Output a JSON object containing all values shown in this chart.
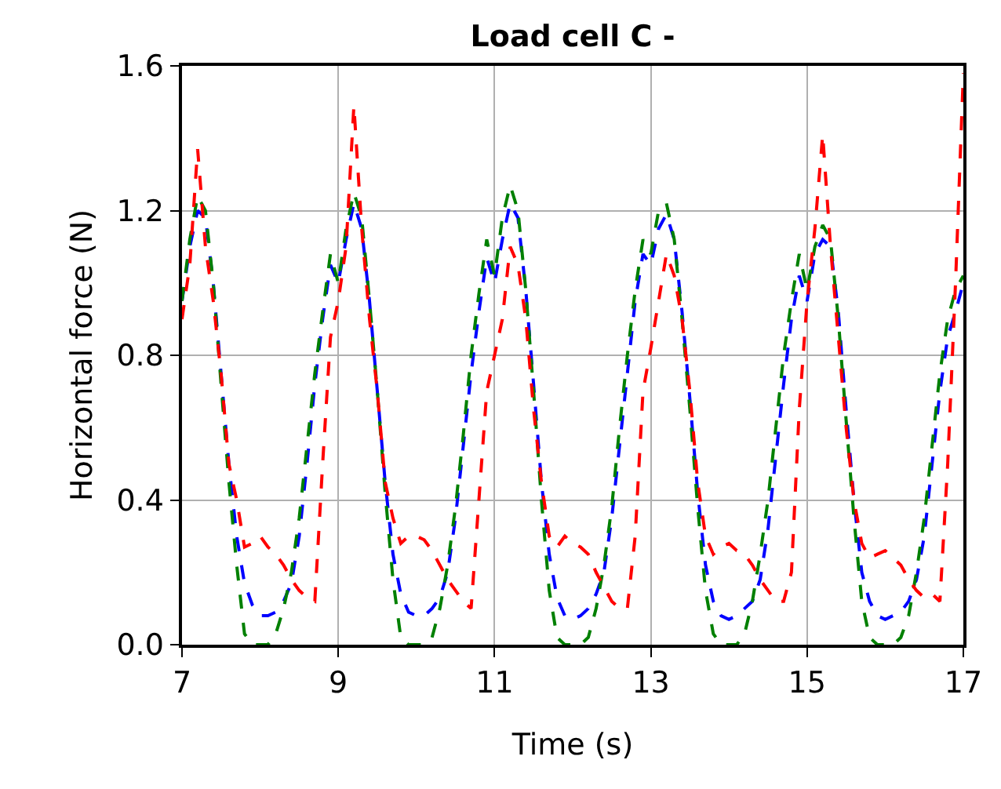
{
  "chart_data": {
    "type": "line",
    "title": "Load cell C -",
    "xlabel": "Time (s)",
    "ylabel": "Horizontal force (N)",
    "x": [
      7.0,
      7.1,
      7.2,
      7.3,
      7.4,
      7.5,
      7.6,
      7.7,
      7.8,
      7.9,
      8.0,
      8.1,
      8.2,
      8.3,
      8.4,
      8.5,
      8.6,
      8.7,
      8.8,
      8.9,
      9.0,
      9.1,
      9.2,
      9.3,
      9.4,
      9.5,
      9.6,
      9.7,
      9.8,
      9.9,
      10.0,
      10.1,
      10.2,
      10.3,
      10.4,
      10.5,
      10.6,
      10.7,
      10.8,
      10.9,
      11.0,
      11.1,
      11.2,
      11.3,
      11.4,
      11.5,
      11.6,
      11.7,
      11.8,
      11.9,
      12.0,
      12.1,
      12.2,
      12.3,
      12.4,
      12.5,
      12.6,
      12.7,
      12.8,
      12.9,
      13.0,
      13.1,
      13.2,
      13.3,
      13.4,
      13.5,
      13.6,
      13.7,
      13.8,
      13.9,
      14.0,
      14.1,
      14.2,
      14.3,
      14.4,
      14.5,
      14.6,
      14.7,
      14.8,
      14.9,
      15.0,
      15.1,
      15.2,
      15.3,
      15.4,
      15.5,
      15.6,
      15.7,
      15.8,
      15.9,
      16.0,
      16.1,
      16.2,
      16.3,
      16.4,
      16.5,
      16.6,
      16.7,
      16.8,
      16.9,
      17.0
    ],
    "series": [
      {
        "color": "#0000ff",
        "values": [
          0.95,
          1.1,
          1.2,
          1.18,
          1.0,
          0.75,
          0.5,
          0.3,
          0.17,
          0.11,
          0.08,
          0.08,
          0.09,
          0.12,
          0.17,
          0.3,
          0.5,
          0.72,
          0.9,
          1.05,
          1.0,
          1.12,
          1.22,
          1.15,
          0.95,
          0.7,
          0.45,
          0.25,
          0.14,
          0.09,
          0.08,
          0.08,
          0.1,
          0.13,
          0.2,
          0.35,
          0.55,
          0.75,
          0.92,
          1.07,
          1.0,
          1.12,
          1.22,
          1.18,
          0.98,
          0.72,
          0.45,
          0.25,
          0.13,
          0.08,
          0.07,
          0.08,
          0.1,
          0.14,
          0.2,
          0.35,
          0.55,
          0.75,
          0.95,
          1.08,
          1.05,
          1.15,
          1.19,
          1.12,
          0.92,
          0.68,
          0.42,
          0.22,
          0.12,
          0.08,
          0.07,
          0.08,
          0.1,
          0.12,
          0.18,
          0.32,
          0.52,
          0.72,
          0.9,
          1.02,
          0.95,
          1.08,
          1.12,
          1.1,
          0.92,
          0.65,
          0.4,
          0.2,
          0.12,
          0.08,
          0.07,
          0.08,
          0.09,
          0.12,
          0.18,
          0.3,
          0.5,
          0.7,
          0.85,
          0.92,
          1.0
        ]
      },
      {
        "color": "#008000",
        "values": [
          0.95,
          1.12,
          1.24,
          1.2,
          1.0,
          0.72,
          0.45,
          0.22,
          0.03,
          0.0,
          0.0,
          0.0,
          0.03,
          0.1,
          0.2,
          0.35,
          0.55,
          0.75,
          0.92,
          1.08,
          1.0,
          1.15,
          1.25,
          1.18,
          0.95,
          0.7,
          0.42,
          0.18,
          0.02,
          0.0,
          0.0,
          0.0,
          0.02,
          0.1,
          0.22,
          0.38,
          0.58,
          0.8,
          0.97,
          1.12,
          1.02,
          1.18,
          1.27,
          1.2,
          0.98,
          0.7,
          0.4,
          0.15,
          0.02,
          0.0,
          0.0,
          0.0,
          0.02,
          0.1,
          0.22,
          0.38,
          0.6,
          0.8,
          0.98,
          1.12,
          1.08,
          1.2,
          1.22,
          1.12,
          0.9,
          0.65,
          0.38,
          0.15,
          0.03,
          0.0,
          0.0,
          0.0,
          0.03,
          0.12,
          0.25,
          0.4,
          0.6,
          0.8,
          0.95,
          1.08,
          0.98,
          1.1,
          1.16,
          1.12,
          0.9,
          0.62,
          0.35,
          0.12,
          0.02,
          0.0,
          0.0,
          0.0,
          0.02,
          0.08,
          0.2,
          0.35,
          0.55,
          0.75,
          0.9,
          0.98,
          1.02
        ]
      },
      {
        "color": "#ff0000",
        "values": [
          0.9,
          1.05,
          1.37,
          1.1,
          0.95,
          0.75,
          0.5,
          0.4,
          0.27,
          0.28,
          0.3,
          0.27,
          0.25,
          0.22,
          0.18,
          0.15,
          0.13,
          0.12,
          0.5,
          0.85,
          0.95,
          1.1,
          1.49,
          1.15,
          0.9,
          0.7,
          0.45,
          0.35,
          0.28,
          0.3,
          0.3,
          0.29,
          0.26,
          0.22,
          0.18,
          0.15,
          0.12,
          0.1,
          0.4,
          0.7,
          0.8,
          0.9,
          1.1,
          1.05,
          0.9,
          0.65,
          0.45,
          0.3,
          0.27,
          0.3,
          0.28,
          0.27,
          0.25,
          0.2,
          0.16,
          0.12,
          0.1,
          0.1,
          0.3,
          0.7,
          0.82,
          0.95,
          1.08,
          1.02,
          0.9,
          0.7,
          0.45,
          0.3,
          0.25,
          0.27,
          0.28,
          0.26,
          0.25,
          0.22,
          0.18,
          0.15,
          0.12,
          0.12,
          0.2,
          0.65,
          0.95,
          1.15,
          1.41,
          1.1,
          0.85,
          0.6,
          0.4,
          0.28,
          0.24,
          0.25,
          0.26,
          0.24,
          0.22,
          0.18,
          0.15,
          0.13,
          0.14,
          0.12,
          0.5,
          1.0,
          1.58
        ]
      }
    ],
    "xlim": [
      7,
      17
    ],
    "xticks": [
      7,
      9,
      11,
      13,
      15,
      17
    ],
    "ylim": [
      0,
      1.6
    ],
    "yticks": [
      {
        "value": 0,
        "label": "0.0"
      },
      {
        "value": 0.4,
        "label": "0.4"
      },
      {
        "value": 0.8,
        "label": "0.8"
      },
      {
        "value": 1.2,
        "label": "1.2"
      },
      {
        "value": 1.6,
        "label": "1.6"
      }
    ],
    "grid": true,
    "marker": "none",
    "line_style": "dashed"
  }
}
